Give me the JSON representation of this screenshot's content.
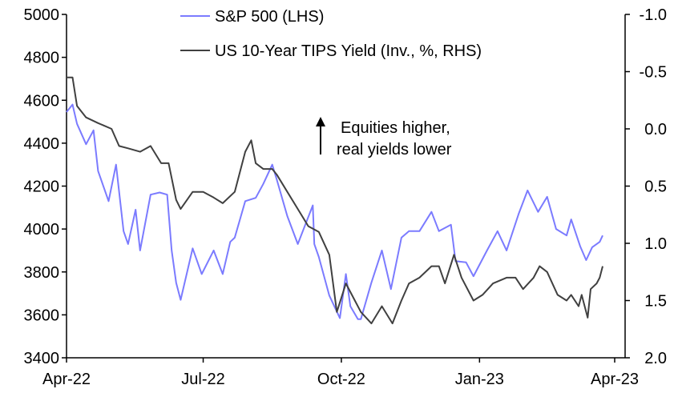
{
  "chart_data": {
    "type": "line",
    "title": "",
    "legend": {
      "placement": "top-center"
    },
    "grid": false,
    "x_ticks": [
      "Apr-22",
      "Jul-22",
      "Oct-22",
      "Jan-23",
      "Apr-23"
    ],
    "x_tick_dates": [
      "2022-04-01",
      "2022-07-01",
      "2022-10-01",
      "2023-01-01",
      "2023-04-01"
    ],
    "left_axis": {
      "ylim": [
        3400,
        5000
      ],
      "ticks": [
        "3400",
        "3600",
        "3800",
        "4000",
        "4200",
        "4400",
        "4600",
        "4800",
        "5000"
      ]
    },
    "right_axis": {
      "ylim": [
        -1.0,
        2.0
      ],
      "inverted": true,
      "ticks": [
        "-1.0",
        "-0.5",
        "0.0",
        "0.5",
        "1.0",
        "1.5",
        "2.0"
      ]
    },
    "annotation": {
      "line1": "Equities higher,",
      "line2": "real yields lower"
    },
    "series": [
      {
        "name": "S&P 500 (LHS)",
        "axis": "left",
        "color": "#7b7bff",
        "x": [
          "2022-04-01",
          "2022-04-05",
          "2022-04-08",
          "2022-04-14",
          "2022-04-19",
          "2022-04-22",
          "2022-04-29",
          "2022-05-04",
          "2022-05-09",
          "2022-05-12",
          "2022-05-17",
          "2022-05-20",
          "2022-05-27",
          "2022-06-02",
          "2022-06-07",
          "2022-06-10",
          "2022-06-13",
          "2022-06-16",
          "2022-06-24",
          "2022-06-30",
          "2022-07-08",
          "2022-07-14",
          "2022-07-19",
          "2022-07-22",
          "2022-07-29",
          "2022-08-05",
          "2022-08-10",
          "2022-08-16",
          "2022-08-19",
          "2022-08-26",
          "2022-09-02",
          "2022-09-12",
          "2022-09-13",
          "2022-09-16",
          "2022-09-23",
          "2022-09-30",
          "2022-10-04",
          "2022-10-07",
          "2022-10-12",
          "2022-10-14",
          "2022-10-21",
          "2022-10-28",
          "2022-11-03",
          "2022-11-10",
          "2022-11-15",
          "2022-11-22",
          "2022-11-30",
          "2022-12-05",
          "2022-12-13",
          "2022-12-16",
          "2022-12-23",
          "2022-12-28",
          "2023-01-06",
          "2023-01-13",
          "2023-01-19",
          "2023-01-27",
          "2023-02-02",
          "2023-02-09",
          "2023-02-15",
          "2023-02-21",
          "2023-02-28",
          "2023-03-03",
          "2023-03-09",
          "2023-03-13",
          "2023-03-17",
          "2023-03-22",
          "2023-03-24"
        ],
        "values": [
          4545,
          4580,
          4490,
          4395,
          4460,
          4270,
          4130,
          4300,
          3990,
          3930,
          4090,
          3900,
          4160,
          4170,
          4160,
          3900,
          3750,
          3670,
          3910,
          3790,
          3900,
          3790,
          3940,
          3960,
          4130,
          4145,
          4210,
          4300,
          4230,
          4060,
          3930,
          4110,
          3930,
          3870,
          3690,
          3585,
          3790,
          3640,
          3580,
          3580,
          3750,
          3900,
          3720,
          3960,
          3990,
          3990,
          4080,
          3990,
          4020,
          3850,
          3845,
          3780,
          3900,
          3990,
          3900,
          4070,
          4180,
          4080,
          4150,
          4000,
          3970,
          4045,
          3920,
          3855,
          3915,
          3940,
          3970
        ]
      },
      {
        "name": "US 10-Year TIPS Yield (Inv., %, RHS)",
        "axis": "right",
        "color": "#404040",
        "x": [
          "2022-04-01",
          "2022-04-05",
          "2022-04-08",
          "2022-04-14",
          "2022-04-22",
          "2022-05-01",
          "2022-05-06",
          "2022-05-12",
          "2022-05-20",
          "2022-05-27",
          "2022-06-03",
          "2022-06-08",
          "2022-06-13",
          "2022-06-16",
          "2022-06-24",
          "2022-07-01",
          "2022-07-08",
          "2022-07-14",
          "2022-07-22",
          "2022-07-29",
          "2022-08-02",
          "2022-08-05",
          "2022-08-10",
          "2022-08-16",
          "2022-08-19",
          "2022-08-26",
          "2022-09-02",
          "2022-09-09",
          "2022-09-16",
          "2022-09-23",
          "2022-09-28",
          "2022-10-04",
          "2022-10-10",
          "2022-10-14",
          "2022-10-21",
          "2022-10-28",
          "2022-11-04",
          "2022-11-10",
          "2022-11-15",
          "2022-11-22",
          "2022-11-30",
          "2022-12-05",
          "2022-12-09",
          "2022-12-15",
          "2022-12-20",
          "2022-12-28",
          "2023-01-03",
          "2023-01-10",
          "2023-01-19",
          "2023-01-25",
          "2023-01-30",
          "2023-02-06",
          "2023-02-10",
          "2023-02-15",
          "2023-02-22",
          "2023-02-28",
          "2023-03-03",
          "2023-03-08",
          "2023-03-10",
          "2023-03-14",
          "2023-03-16",
          "2023-03-20",
          "2023-03-22",
          "2023-03-24"
        ],
        "values": [
          -0.45,
          -0.45,
          -0.2,
          -0.1,
          -0.05,
          0.0,
          0.15,
          0.17,
          0.2,
          0.15,
          0.3,
          0.3,
          0.62,
          0.7,
          0.55,
          0.55,
          0.6,
          0.65,
          0.55,
          0.2,
          0.1,
          0.3,
          0.35,
          0.35,
          0.4,
          0.55,
          0.7,
          0.85,
          0.9,
          1.1,
          1.6,
          1.35,
          1.5,
          1.6,
          1.7,
          1.55,
          1.7,
          1.5,
          1.35,
          1.3,
          1.2,
          1.2,
          1.35,
          1.1,
          1.3,
          1.5,
          1.45,
          1.35,
          1.3,
          1.3,
          1.4,
          1.3,
          1.2,
          1.25,
          1.45,
          1.5,
          1.45,
          1.55,
          1.45,
          1.65,
          1.4,
          1.35,
          1.3,
          1.2
        ]
      }
    ]
  }
}
